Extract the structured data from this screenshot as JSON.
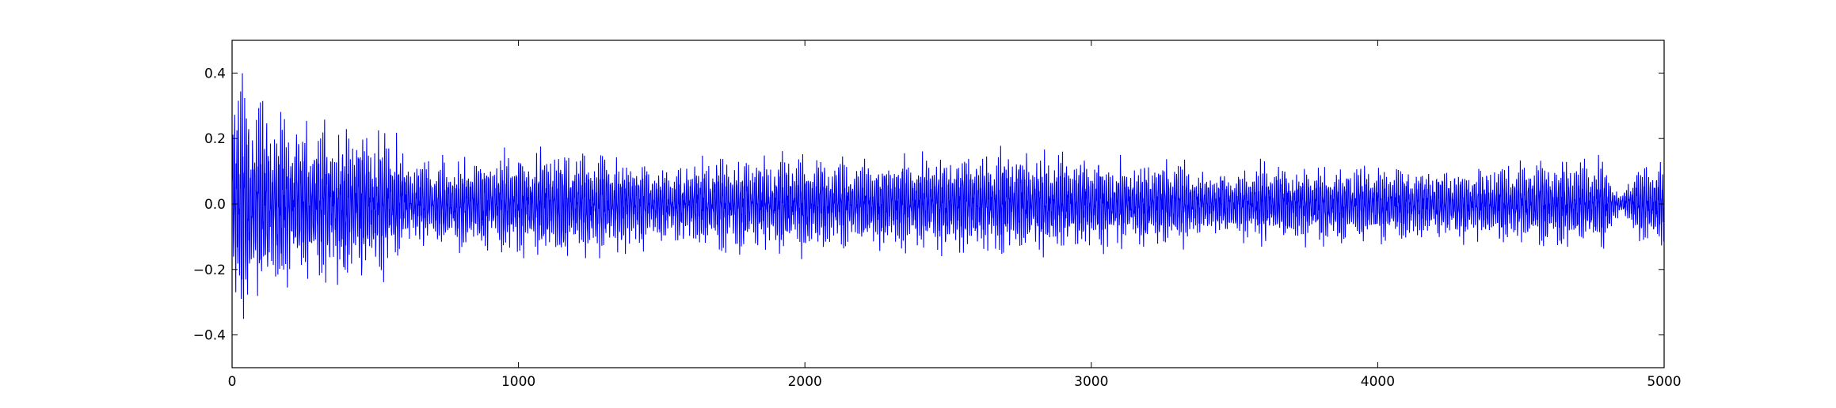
{
  "chart_data": {
    "type": "line",
    "title": "",
    "xlabel": "",
    "ylabel": "",
    "xlim": [
      0,
      5000
    ],
    "ylim": [
      -0.5,
      0.5
    ],
    "grid": false,
    "legend": "none",
    "x_ticks": [
      0,
      1000,
      2000,
      3000,
      4000,
      5000
    ],
    "x_tick_labels": [
      "0",
      "1000",
      "2000",
      "3000",
      "4000",
      "5000"
    ],
    "y_ticks": [
      0.4,
      0.2,
      0.0,
      -0.2,
      -0.4
    ],
    "y_tick_labels": [
      "0.4",
      "0.2",
      "0.0",
      "−0.2",
      "−0.4"
    ],
    "series": [
      {
        "color": "#0000ff",
        "x_start": 0,
        "x_end": 5000,
        "point_count": 5000,
        "style": "dense oscillating signal, symmetric about 0",
        "amplitude_envelope": {
          "x": [
            0,
            50,
            100,
            200,
            300,
            400,
            500,
            580,
            600,
            800,
            1000,
            1200,
            1400,
            1500,
            1600,
            1800,
            2000,
            2200,
            2300,
            2500,
            2700,
            2900,
            3100,
            3300,
            3400,
            3600,
            3800,
            4000,
            4200,
            4400,
            4500,
            4700,
            4800,
            4850,
            4900,
            5000
          ],
          "y": [
            0.42,
            0.4,
            0.34,
            0.3,
            0.28,
            0.27,
            0.25,
            0.24,
            0.15,
            0.15,
            0.18,
            0.17,
            0.16,
            0.12,
            0.15,
            0.16,
            0.17,
            0.16,
            0.15,
            0.17,
            0.18,
            0.16,
            0.15,
            0.15,
            0.1,
            0.14,
            0.13,
            0.13,
            0.12,
            0.13,
            0.14,
            0.15,
            0.15,
            0.02,
            0.14,
            0.15
          ]
        }
      }
    ]
  }
}
